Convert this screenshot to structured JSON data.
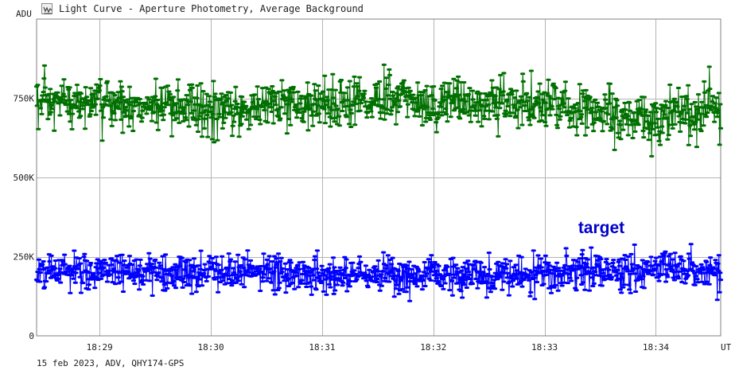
{
  "window": {
    "title": "Light Curve - Aperture Photometry, Average Background",
    "icon": "light-curve-app-icon"
  },
  "footer": {
    "info": "15 feb 2023, ADV, QHY174-GPS"
  },
  "chart_data": {
    "type": "scatter",
    "title": "",
    "ylabel": "ADU",
    "xlabel": "UT",
    "grid": true,
    "x_range": [
      "18:28:26",
      "18:34:35"
    ],
    "ylim": [
      0,
      1000000
    ],
    "y_ticks": [
      {
        "value": 0,
        "label": "0"
      },
      {
        "value": 250000,
        "label": "250K"
      },
      {
        "value": 500000,
        "label": "500K"
      },
      {
        "value": 750000,
        "label": "750K"
      }
    ],
    "x_ticks": [
      {
        "value": "18:29",
        "label": "18:29"
      },
      {
        "value": "18:30",
        "label": "18:30"
      },
      {
        "value": "18:31",
        "label": "18:31"
      },
      {
        "value": "18:32",
        "label": "18:32"
      },
      {
        "value": "18:33",
        "label": "18:33"
      },
      {
        "value": "18:34",
        "label": "18:34"
      }
    ],
    "series": [
      {
        "name": "",
        "color": "#007000",
        "connected": true,
        "marker": "dot",
        "approx_samples": 1200,
        "trend": [
          {
            "t": "18:28:26",
            "y": 730000
          },
          {
            "t": "18:29:00",
            "y": 735000
          },
          {
            "t": "18:29:30",
            "y": 725000
          },
          {
            "t": "18:30:00",
            "y": 705000
          },
          {
            "t": "18:30:30",
            "y": 730000
          },
          {
            "t": "18:31:00",
            "y": 735000
          },
          {
            "t": "18:31:30",
            "y": 745000
          },
          {
            "t": "18:32:00",
            "y": 740000
          },
          {
            "t": "18:32:30",
            "y": 735000
          },
          {
            "t": "18:33:00",
            "y": 730000
          },
          {
            "t": "18:33:30",
            "y": 705000
          },
          {
            "t": "18:34:00",
            "y": 680000
          },
          {
            "t": "18:34:15",
            "y": 700000
          },
          {
            "t": "18:34:35",
            "y": 725000
          }
        ],
        "noise_sd": 40000,
        "range": [
          565000,
          900000
        ]
      },
      {
        "name": "target",
        "color": "#0000ff",
        "connected": true,
        "marker": "dot",
        "approx_samples": 1200,
        "trend": [
          {
            "t": "18:28:26",
            "y": 205000
          },
          {
            "t": "18:29:00",
            "y": 200000
          },
          {
            "t": "18:30:00",
            "y": 200000
          },
          {
            "t": "18:31:00",
            "y": 195000
          },
          {
            "t": "18:32:00",
            "y": 190000
          },
          {
            "t": "18:33:00",
            "y": 195000
          },
          {
            "t": "18:33:30",
            "y": 205000
          },
          {
            "t": "18:34:00",
            "y": 215000
          },
          {
            "t": "18:34:35",
            "y": 205000
          }
        ],
        "noise_sd": 30000,
        "range": [
          110000,
          295000
        ]
      }
    ],
    "annotations": [
      {
        "text": "target",
        "color": "#0000cc",
        "series": "target"
      }
    ]
  }
}
